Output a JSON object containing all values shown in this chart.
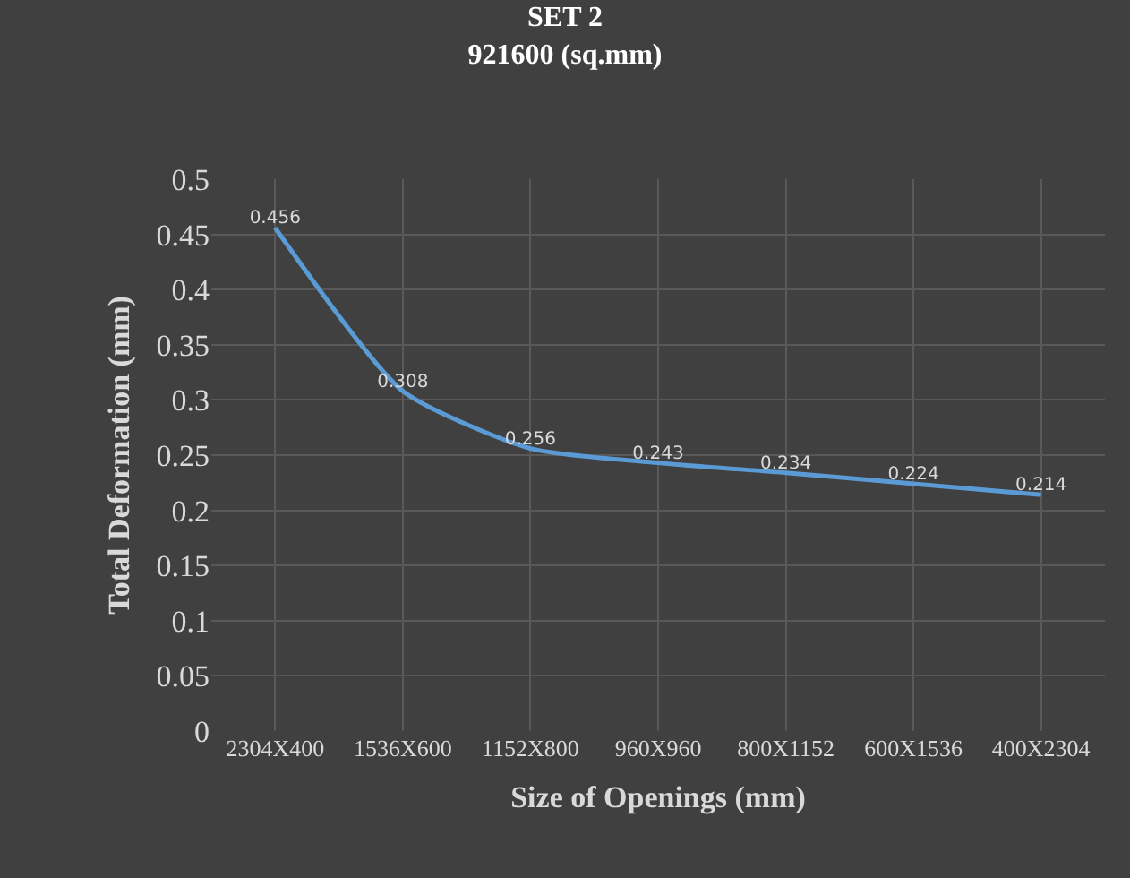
{
  "chart_data": {
    "type": "line",
    "title": "SET 2\n921600 (sq.mm)",
    "xlabel": "Size of Openings (mm)",
    "ylabel": "Total Deformation (mm)",
    "categories": [
      "2304X400",
      "1536X600",
      "1152X800",
      "960X960",
      "800X1152",
      "600X1536",
      "400X2304"
    ],
    "series": [
      {
        "color": "#5b9bd5",
        "values": [
          0.456,
          0.308,
          0.256,
          0.243,
          0.234,
          0.224,
          0.214
        ]
      }
    ],
    "ylim": [
      0,
      0.5
    ],
    "yticks": [
      0,
      0.05,
      0.1,
      0.15,
      0.2,
      0.25,
      0.3,
      0.35,
      0.4,
      0.45,
      0.5
    ],
    "grid": true,
    "data_labels": true,
    "marker": "none",
    "line_style": "solid"
  }
}
